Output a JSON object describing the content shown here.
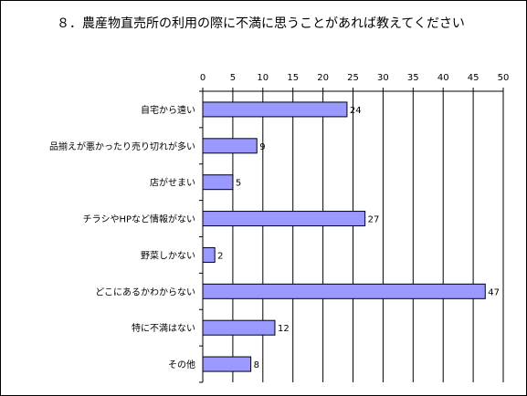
{
  "chart_data": {
    "type": "bar",
    "orientation": "horizontal",
    "title": "８．農産物直売所の利用の際に不満に思うことがあれば教えてください",
    "xlim": [
      0,
      50
    ],
    "ticks": [
      "0",
      "5",
      "10",
      "15",
      "20",
      "25",
      "30",
      "35",
      "40",
      "45",
      "50"
    ],
    "grid": true,
    "bar_color": "#9999ff",
    "categories": [
      "自宅から遠い",
      "品揃えが悪かったり売り切れが多い",
      "店がせまい",
      "チラシやHPなど情報がない",
      "野菜しかない",
      "どこにあるかわからない",
      "特に不満はない",
      "その他"
    ],
    "values": [
      24,
      9,
      5,
      27,
      2,
      47,
      12,
      8
    ],
    "value_labels": [
      "24",
      "9",
      "5",
      "27",
      "2",
      "47",
      "12",
      "8"
    ]
  }
}
